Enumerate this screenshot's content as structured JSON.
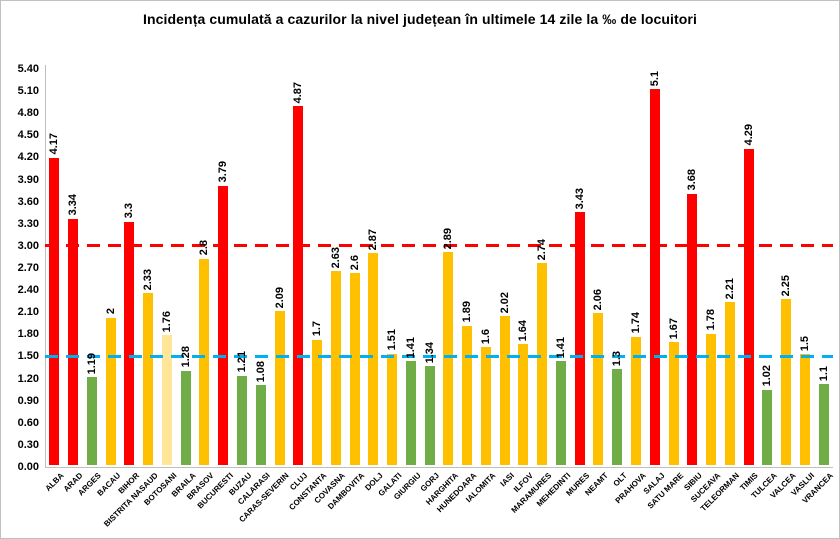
{
  "chart_data": {
    "type": "bar",
    "title": "Incidența cumulată a cazurilor la nivel județean în ultimele 14 zile la ‰ de locuitori",
    "xlabel": "",
    "ylabel": "",
    "ylim": [
      0,
      5.4
    ],
    "ytick_step": 0.3,
    "grid": false,
    "legend_position": "none",
    "categories": [
      "ALBA",
      "ARAD",
      "ARGES",
      "BACAU",
      "BIHOR",
      "BISTRITA NASAUD",
      "BOTOSANI",
      "BRAILA",
      "BRASOV",
      "BUCURESTI",
      "BUZAU",
      "CALARASI",
      "CARAS-SEVERIN",
      "CLUJ",
      "CONSTANTA",
      "COVASNA",
      "DAMBOVITA",
      "DOLJ",
      "GALATI",
      "GIURGIU",
      "GORJ",
      "HARGHITA",
      "HUNEDOARA",
      "IALOMITA",
      "IASI",
      "ILFOV",
      "MARAMURES",
      "MEHEDINTI",
      "MURES",
      "NEAMT",
      "OLT",
      "PRAHOVA",
      "SALAJ",
      "SATU MARE",
      "SIBIU",
      "SUCEAVA",
      "TELEORMAN",
      "TIMIS",
      "TULCEA",
      "VALCEA",
      "VASLUI",
      "VRANCEA"
    ],
    "values": [
      4.17,
      3.34,
      1.19,
      2,
      3.3,
      2.33,
      1.76,
      1.28,
      2.8,
      3.79,
      1.21,
      1.08,
      2.09,
      4.87,
      1.7,
      2.63,
      2.6,
      2.87,
      1.51,
      1.41,
      1.34,
      2.89,
      1.89,
      1.6,
      2.02,
      1.64,
      2.74,
      1.41,
      3.43,
      2.06,
      1.3,
      1.74,
      5.1,
      1.67,
      3.68,
      1.78,
      2.21,
      4.29,
      1.02,
      2.25,
      1.5,
      1.1
    ],
    "value_labels": [
      "4.17",
      "3.34",
      "1.19",
      "2",
      "3.3",
      "2.33",
      "1.76",
      "1.28",
      "2.8",
      "3.79",
      "1.21",
      "1.08",
      "2.09",
      "4.87",
      "1.7",
      "2.63",
      "2.6",
      "2.87",
      "1.51",
      "1.41",
      "1.34",
      "2.89",
      "1.89",
      "1.6",
      "2.02",
      "1.64",
      "2.74",
      "1.41",
      "3.43",
      "2.06",
      "1.3",
      "1.74",
      "5.1",
      "1.67",
      "3.68",
      "1.78",
      "2.21",
      "4.29",
      "1.02",
      "2.25",
      "1.5",
      "1.1"
    ],
    "bar_color_keys": [
      "red",
      "red",
      "green",
      "yellow",
      "red",
      "yellow",
      "pale_yellow",
      "green",
      "yellow",
      "red",
      "green",
      "green",
      "yellow",
      "red",
      "yellow",
      "yellow",
      "yellow",
      "yellow",
      "yellow",
      "green",
      "green",
      "yellow",
      "yellow",
      "yellow",
      "yellow",
      "yellow",
      "yellow",
      "green",
      "red",
      "yellow",
      "green",
      "yellow",
      "red",
      "yellow",
      "red",
      "yellow",
      "yellow",
      "red",
      "green",
      "yellow",
      "yellow",
      "green"
    ],
    "palette": {
      "red": "#FF0000",
      "yellow": "#FFC000",
      "pale_yellow": "#FFE699",
      "green": "#70AD47"
    },
    "reference_lines": [
      {
        "value": 3.0,
        "color": "#FF0000"
      },
      {
        "value": 1.5,
        "color": "#00B0F0"
      }
    ],
    "axis_color": "#BFBFBF",
    "text_color": "#000000"
  }
}
